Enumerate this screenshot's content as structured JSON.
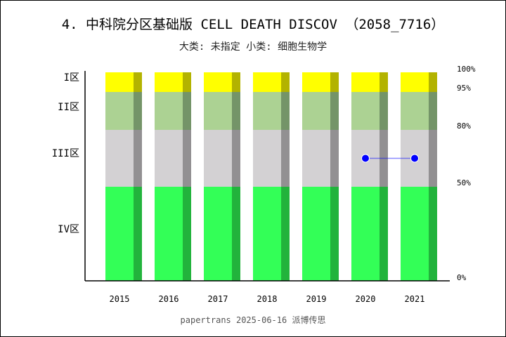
{
  "chart_data": {
    "type": "bar",
    "title": "4. 中科院分区基础版 CELL DEATH DISCOV （2058_7716）",
    "subtitle": "大类: 未指定 小类: 细胞生物学",
    "categories": [
      "2015",
      "2016",
      "2017",
      "2018",
      "2019",
      "2020",
      "2021"
    ],
    "bands": [
      {
        "name": "IV区",
        "from": 0,
        "to": 50,
        "color": "#33ff57",
        "shade": "#22b33c"
      },
      {
        "name": "III区",
        "from": 50,
        "to": 80,
        "color": "#d3d1d3",
        "shade": "#929092"
      },
      {
        "name": "II区",
        "from": 80,
        "to": 95,
        "color": "#acd293",
        "shade": "#749468"
      },
      {
        "name": "I区",
        "from": 95,
        "to": 100,
        "color": "#ffff00",
        "shade": "#b3b300"
      }
    ],
    "right_ticks": [
      "100%",
      "95%",
      "80%",
      "50%",
      "0%"
    ],
    "series": [
      {
        "x": [
          "2020",
          "2021"
        ],
        "values": [
          65,
          65
        ],
        "color": "#0000ff"
      }
    ],
    "ylim": [
      0,
      100
    ]
  },
  "footer": "papertrans 2025-06-16 派博传思"
}
